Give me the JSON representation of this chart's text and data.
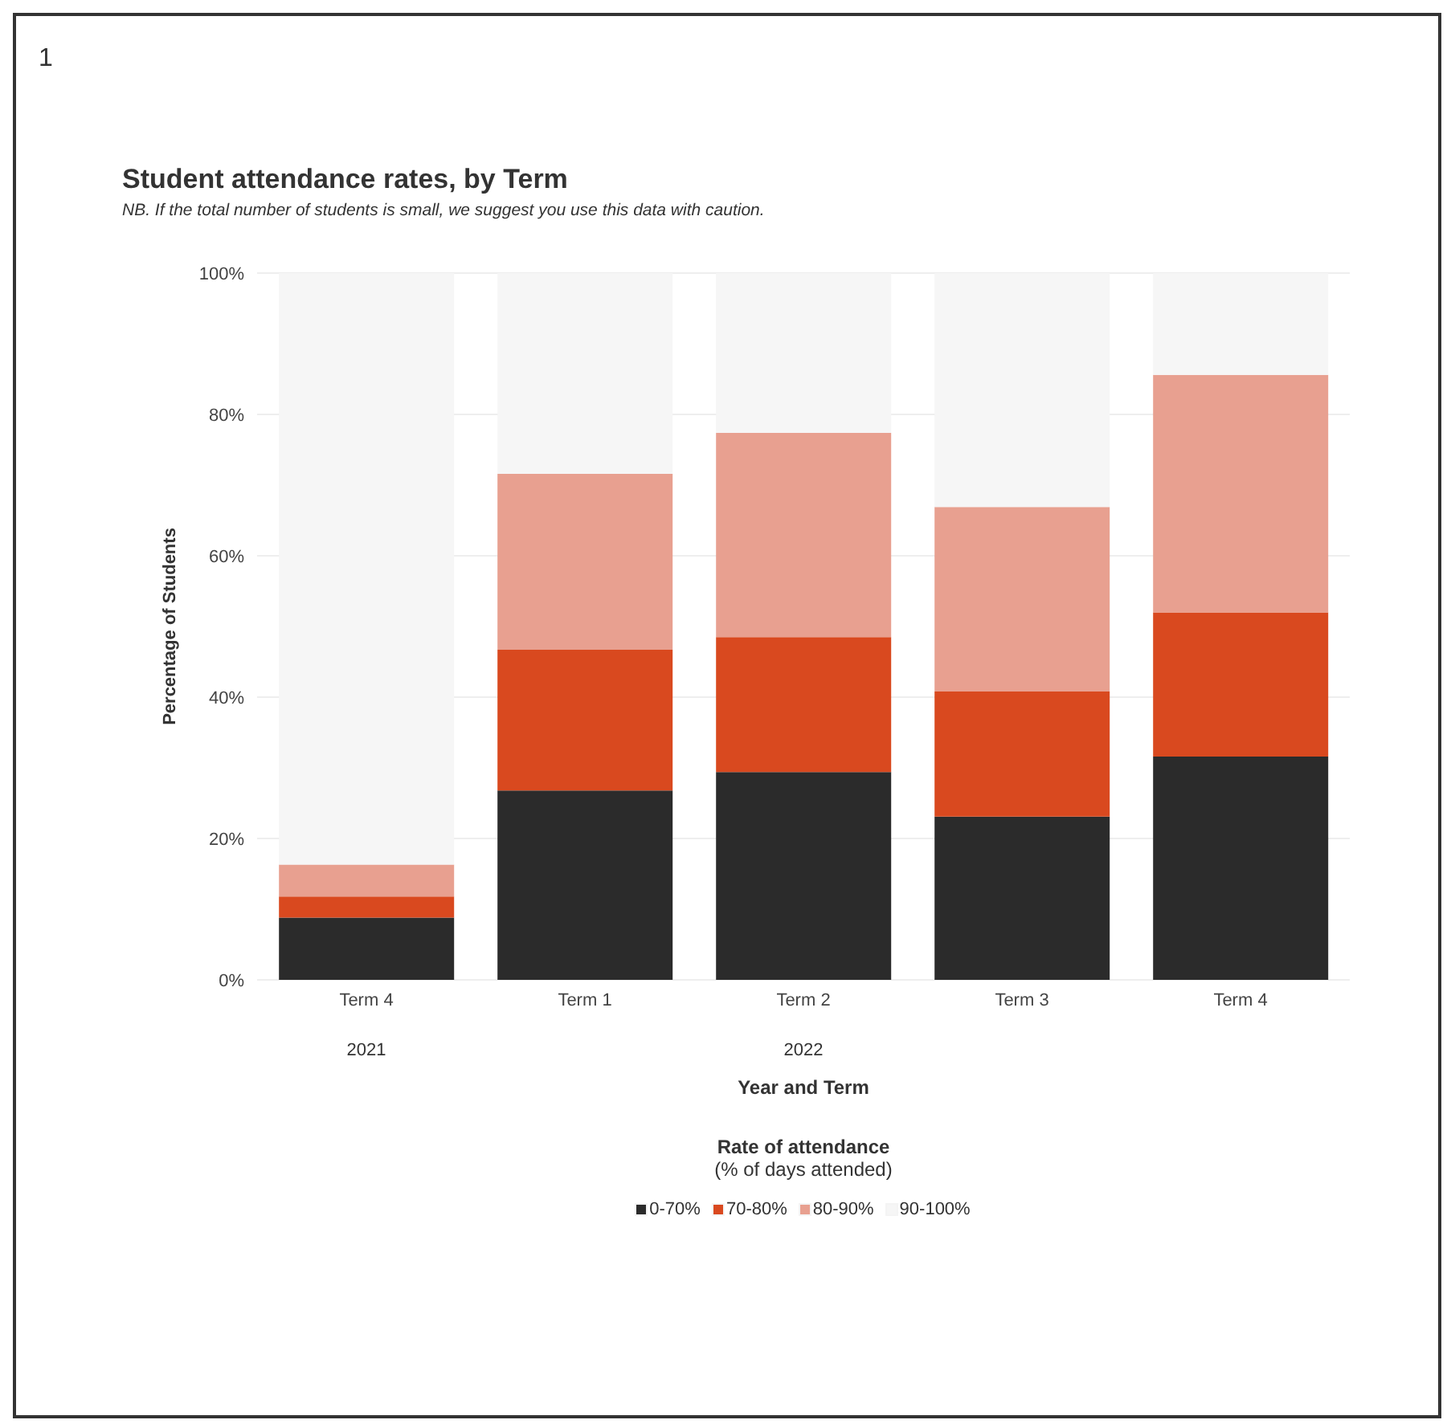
{
  "chart_data": {
    "type": "bar",
    "title": "Student attendance rates, by Term",
    "subtitle": "NB. If the total number of students is small, we suggest you use this data with caution.",
    "xlabel": "Year and Term",
    "ylabel": "Percentage of Students",
    "legend_title": "Rate of attendance\n(% of days attended)",
    "annotations": [
      "1",
      "2021",
      "2022"
    ],
    "categories": [
      "Term 4",
      "Term 1",
      "Term 2",
      "Term 3",
      "Term 4"
    ],
    "stacked": true,
    "series": [
      {
        "name": "0-70%",
        "color": "#2b2b2b",
        "values": [
          8.8,
          26.8,
          29.4,
          23.1,
          31.6
        ]
      },
      {
        "name": "70-80%",
        "color": "#d9491f",
        "values": [
          3.0,
          19.9,
          19.1,
          17.7,
          20.4
        ]
      },
      {
        "name": "80-90%",
        "color": "#e8a090",
        "values": [
          4.5,
          24.9,
          28.9,
          26.1,
          33.6
        ]
      },
      {
        "name": "90-100%",
        "color": "#f6f6f6",
        "values": [
          83.7,
          28.4,
          22.6,
          33.1,
          14.4
        ]
      }
    ],
    "ylim": [
      0,
      100
    ],
    "yticks": [
      {
        "value": 0,
        "label": "0%"
      },
      {
        "value": 20,
        "label": "20%"
      },
      {
        "value": 40,
        "label": "40%"
      },
      {
        "value": 60,
        "label": "60%"
      },
      {
        "value": 80,
        "label": "80%"
      },
      {
        "value": 100,
        "label": "100%"
      }
    ],
    "grid": "y",
    "legend": "bottom"
  }
}
